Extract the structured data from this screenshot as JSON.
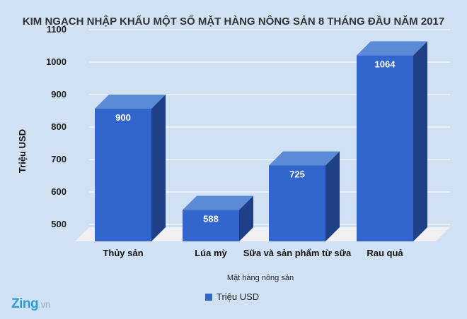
{
  "chart_data": {
    "type": "bar",
    "title": "KIM NGẠCH NHẬP KHẨU MỘT SỐ MẶT HÀNG NÔNG SẢN 8 THÁNG ĐẦU NĂM 2017",
    "xlabel": "Mặt hàng nông sản",
    "ylabel": "Triệu USD",
    "categories": [
      "Thủy sản",
      "Lúa mỳ",
      "Sữa và sản phẩm từ sữa",
      "Rau quả"
    ],
    "series": [
      {
        "name": "Triệu USD",
        "values": [
          900,
          588,
          725,
          1064
        ],
        "color": "#3366cc"
      }
    ],
    "ylim": [
      500,
      1100
    ],
    "yticks": [
      "500",
      "600",
      "700",
      "800",
      "900",
      "1000",
      "1100"
    ],
    "grid": true,
    "legend": "bottom",
    "three_d": true
  },
  "logo": {
    "main": "Zing",
    "suffix": ".vn"
  }
}
